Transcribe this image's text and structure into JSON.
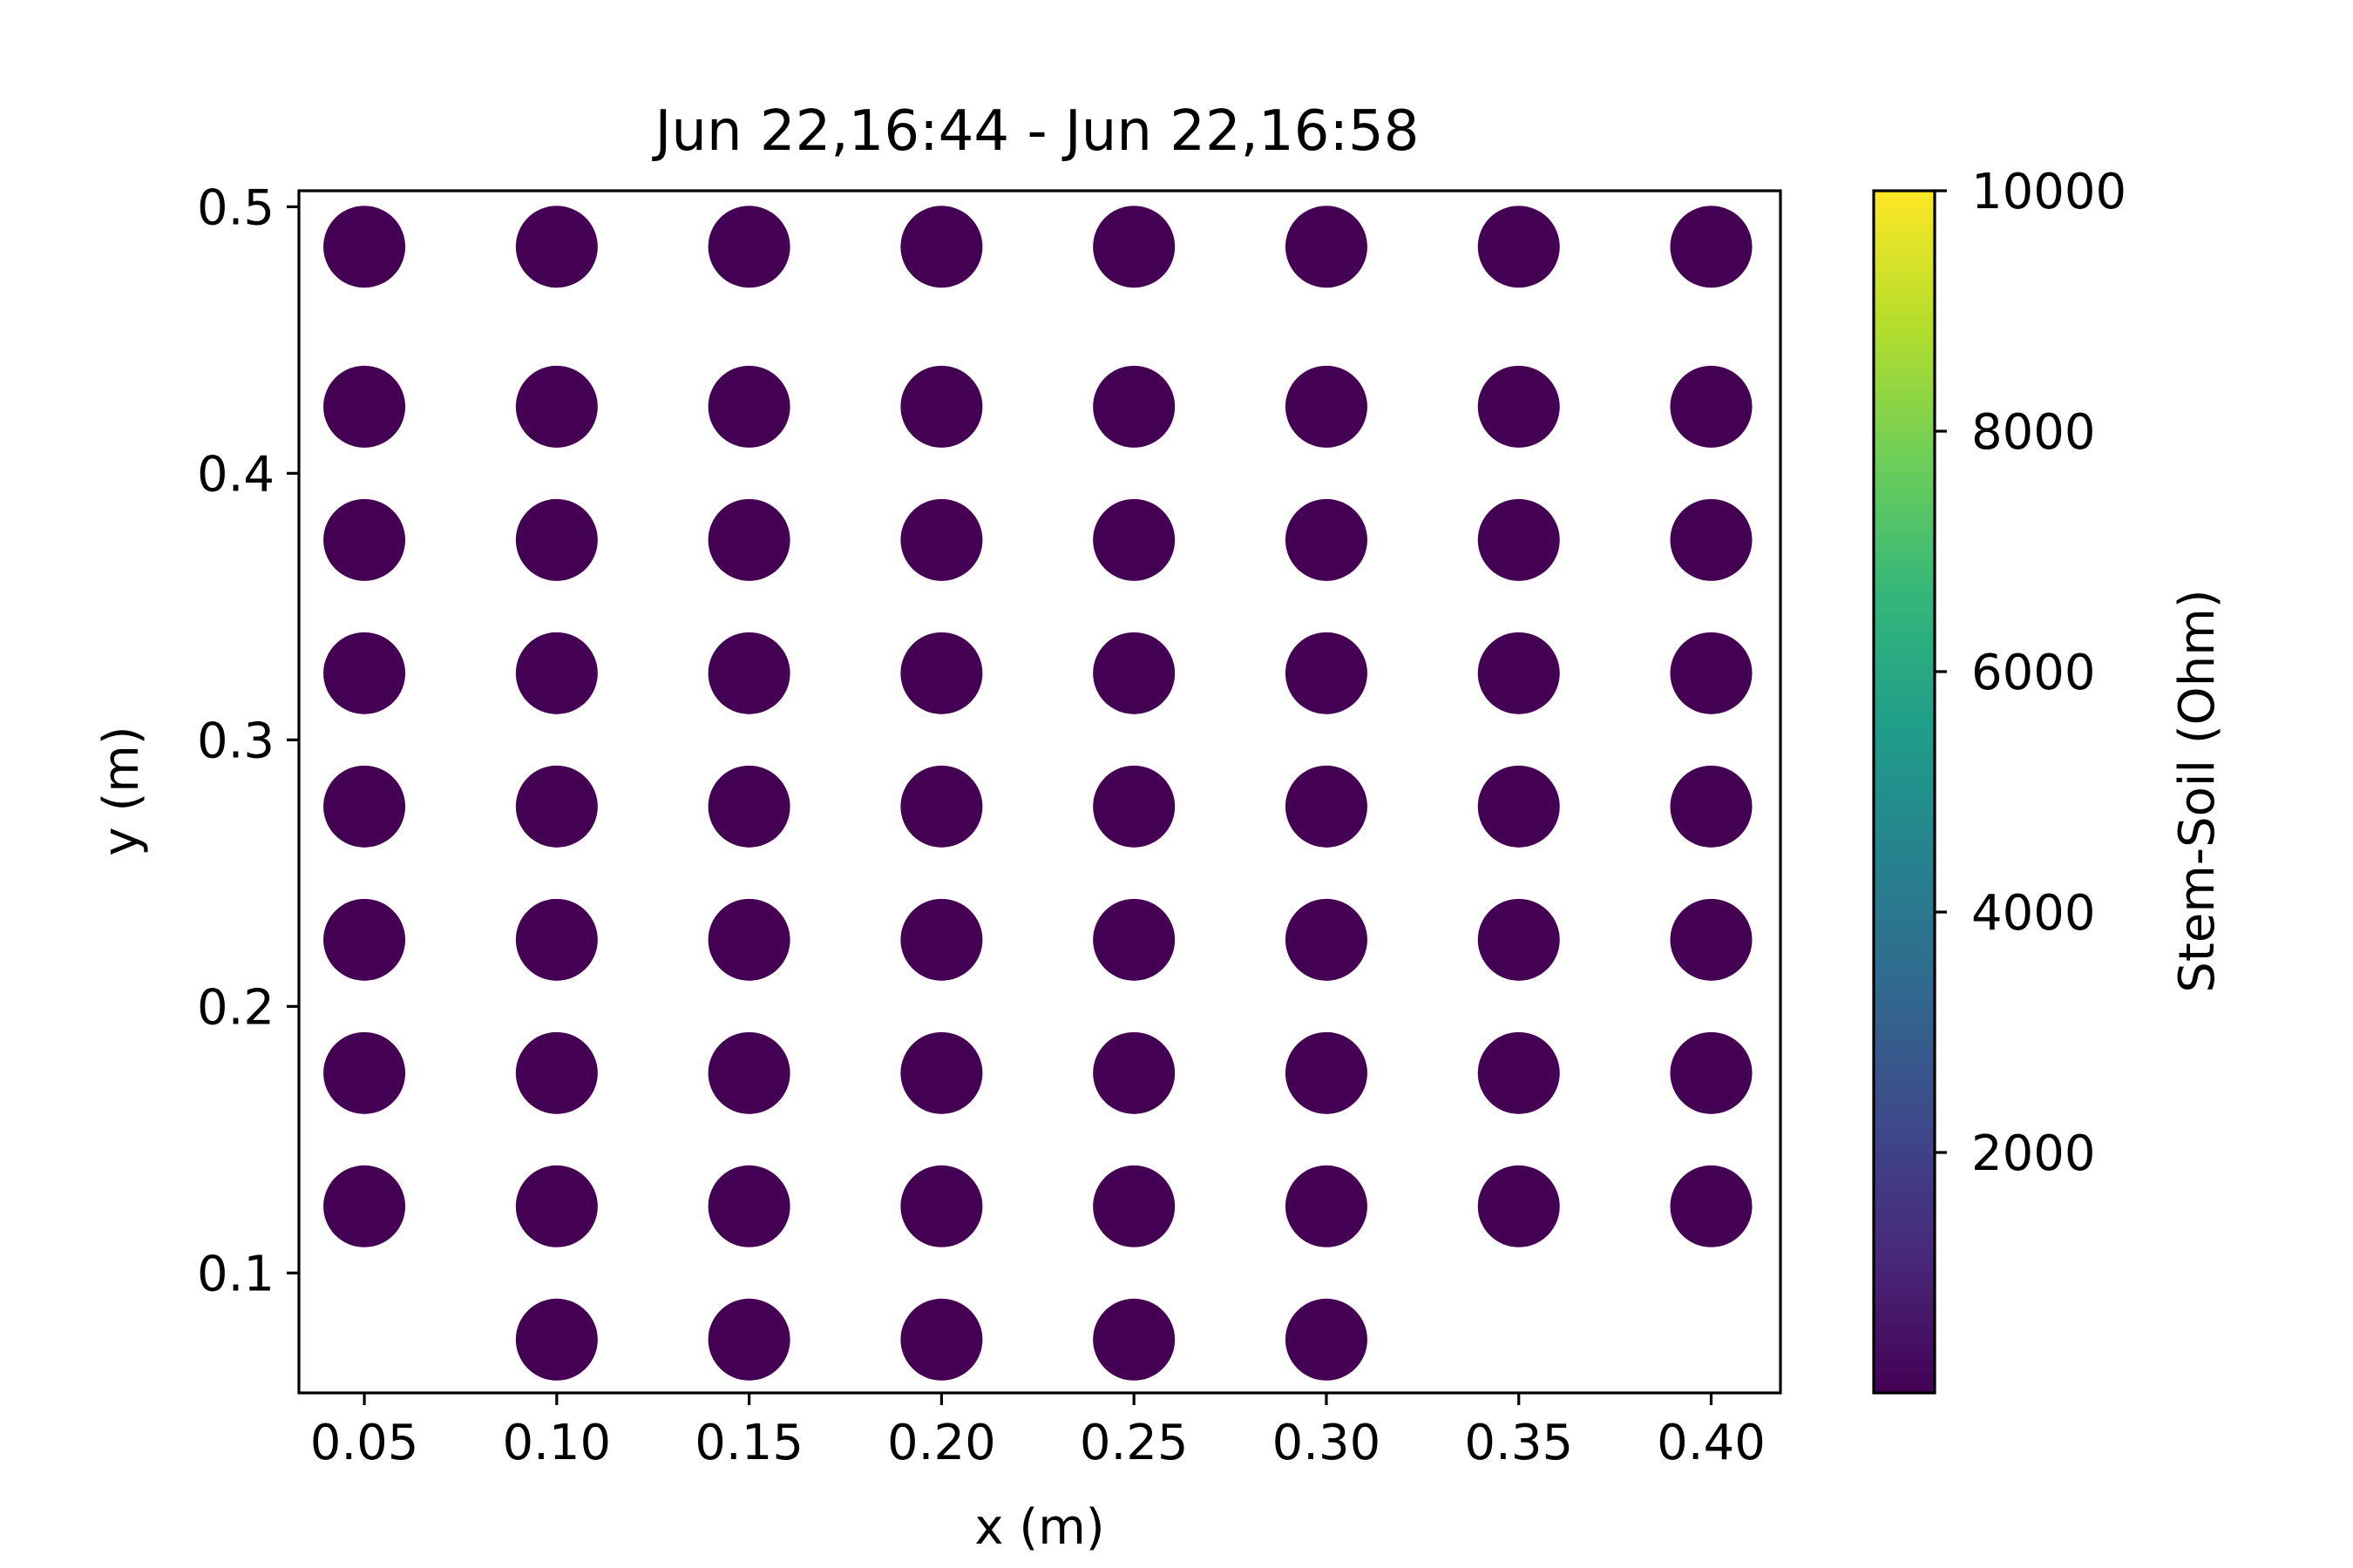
{
  "chart_data": {
    "type": "scatter",
    "title": "Jun 22,16:44 - Jun 22,16:58",
    "xlabel": "x (m)",
    "ylabel": "y (m)",
    "xlim": [
      0.033,
      0.418
    ],
    "ylim": [
      0.055,
      0.506
    ],
    "xticks": [
      0.05,
      0.1,
      0.15,
      0.2,
      0.25,
      0.3,
      0.35,
      0.4
    ],
    "xtick_labels": [
      "0.05",
      "0.10",
      "0.15",
      "0.20",
      "0.25",
      "0.30",
      "0.35",
      "0.40"
    ],
    "yticks": [
      0.1,
      0.2,
      0.3,
      0.4,
      0.5
    ],
    "ytick_labels": [
      "0.1",
      "0.2",
      "0.3",
      "0.4",
      "0.5"
    ],
    "grid": false,
    "marker_color": "#440154",
    "points": [
      {
        "x": 0.05,
        "y": 0.485
      },
      {
        "x": 0.1,
        "y": 0.485
      },
      {
        "x": 0.15,
        "y": 0.485
      },
      {
        "x": 0.2,
        "y": 0.485
      },
      {
        "x": 0.25,
        "y": 0.485
      },
      {
        "x": 0.3,
        "y": 0.485
      },
      {
        "x": 0.35,
        "y": 0.485
      },
      {
        "x": 0.4,
        "y": 0.485
      },
      {
        "x": 0.05,
        "y": 0.425
      },
      {
        "x": 0.1,
        "y": 0.425
      },
      {
        "x": 0.15,
        "y": 0.425
      },
      {
        "x": 0.2,
        "y": 0.425
      },
      {
        "x": 0.25,
        "y": 0.425
      },
      {
        "x": 0.3,
        "y": 0.425
      },
      {
        "x": 0.35,
        "y": 0.425
      },
      {
        "x": 0.4,
        "y": 0.425
      },
      {
        "x": 0.05,
        "y": 0.375
      },
      {
        "x": 0.1,
        "y": 0.375
      },
      {
        "x": 0.15,
        "y": 0.375
      },
      {
        "x": 0.2,
        "y": 0.375
      },
      {
        "x": 0.25,
        "y": 0.375
      },
      {
        "x": 0.3,
        "y": 0.375
      },
      {
        "x": 0.35,
        "y": 0.375
      },
      {
        "x": 0.4,
        "y": 0.375
      },
      {
        "x": 0.05,
        "y": 0.325
      },
      {
        "x": 0.1,
        "y": 0.325
      },
      {
        "x": 0.15,
        "y": 0.325
      },
      {
        "x": 0.2,
        "y": 0.325
      },
      {
        "x": 0.25,
        "y": 0.325
      },
      {
        "x": 0.3,
        "y": 0.325
      },
      {
        "x": 0.35,
        "y": 0.325
      },
      {
        "x": 0.4,
        "y": 0.325
      },
      {
        "x": 0.05,
        "y": 0.275
      },
      {
        "x": 0.1,
        "y": 0.275
      },
      {
        "x": 0.15,
        "y": 0.275
      },
      {
        "x": 0.2,
        "y": 0.275
      },
      {
        "x": 0.25,
        "y": 0.275
      },
      {
        "x": 0.3,
        "y": 0.275
      },
      {
        "x": 0.35,
        "y": 0.275
      },
      {
        "x": 0.4,
        "y": 0.275
      },
      {
        "x": 0.05,
        "y": 0.225
      },
      {
        "x": 0.1,
        "y": 0.225
      },
      {
        "x": 0.15,
        "y": 0.225
      },
      {
        "x": 0.2,
        "y": 0.225
      },
      {
        "x": 0.25,
        "y": 0.225
      },
      {
        "x": 0.3,
        "y": 0.225
      },
      {
        "x": 0.35,
        "y": 0.225
      },
      {
        "x": 0.4,
        "y": 0.225
      },
      {
        "x": 0.05,
        "y": 0.175
      },
      {
        "x": 0.1,
        "y": 0.175
      },
      {
        "x": 0.15,
        "y": 0.175
      },
      {
        "x": 0.2,
        "y": 0.175
      },
      {
        "x": 0.25,
        "y": 0.175
      },
      {
        "x": 0.3,
        "y": 0.175
      },
      {
        "x": 0.35,
        "y": 0.175
      },
      {
        "x": 0.4,
        "y": 0.175
      },
      {
        "x": 0.05,
        "y": 0.125
      },
      {
        "x": 0.1,
        "y": 0.125
      },
      {
        "x": 0.15,
        "y": 0.125
      },
      {
        "x": 0.2,
        "y": 0.125
      },
      {
        "x": 0.25,
        "y": 0.125
      },
      {
        "x": 0.3,
        "y": 0.125
      },
      {
        "x": 0.35,
        "y": 0.125
      },
      {
        "x": 0.4,
        "y": 0.125
      },
      {
        "x": 0.1,
        "y": 0.075
      },
      {
        "x": 0.15,
        "y": 0.075
      },
      {
        "x": 0.2,
        "y": 0.075
      },
      {
        "x": 0.25,
        "y": 0.075
      },
      {
        "x": 0.3,
        "y": 0.075
      }
    ],
    "colorbar": {
      "label": "Stem-Soil (Ohm)",
      "range": [
        0,
        10000
      ],
      "ticks": [
        2000,
        4000,
        6000,
        8000,
        10000
      ],
      "tick_labels": [
        "2000",
        "4000",
        "6000",
        "8000",
        "10000"
      ],
      "colormap": "viridis",
      "colormap_stops": [
        "#440154",
        "#482878",
        "#3e4989",
        "#31688e",
        "#26828e",
        "#1f9e89",
        "#35b779",
        "#6ece58",
        "#b5de2b",
        "#fde725"
      ]
    }
  }
}
